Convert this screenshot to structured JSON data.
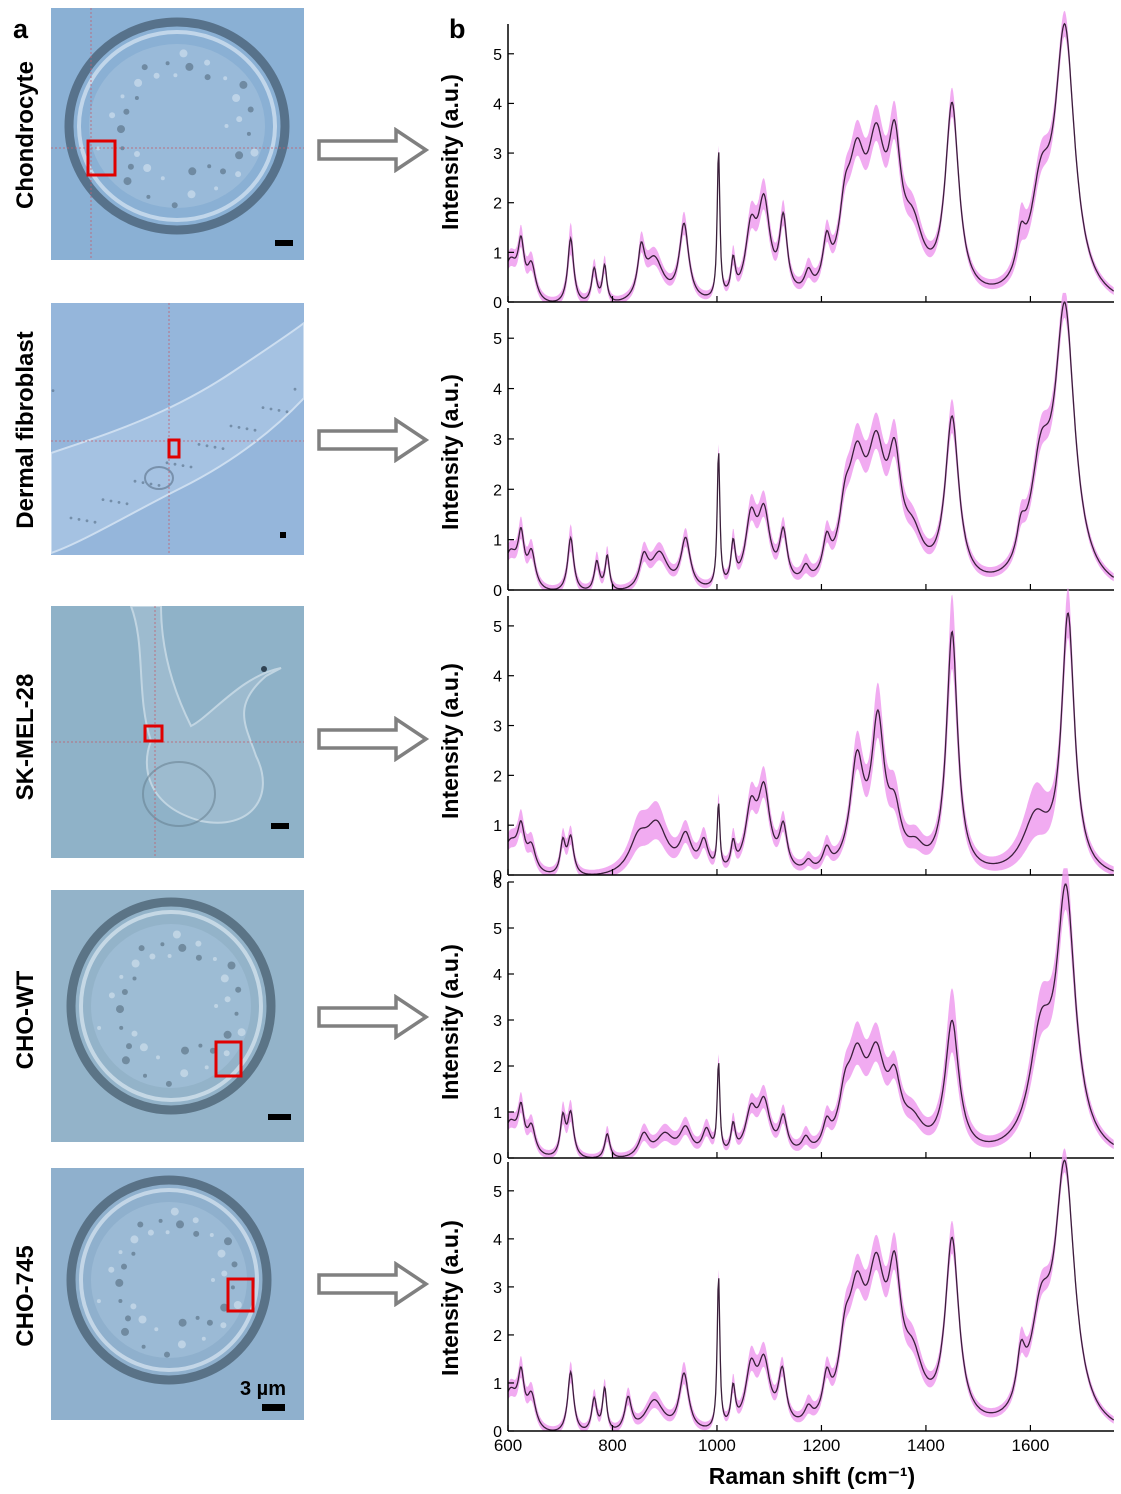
{
  "panel_labels": {
    "a": "a",
    "b": "b"
  },
  "cells": [
    {
      "name": "Chondrocyte",
      "scale_label": ""
    },
    {
      "name": "Dermal fibroblast",
      "scale_label": ""
    },
    {
      "name": "SK-MEL-28",
      "scale_label": ""
    },
    {
      "name": "CHO-WT",
      "scale_label": ""
    },
    {
      "name": "CHO-745",
      "scale_label": "3 µm"
    }
  ],
  "colors": {
    "mean_line": "#3a1f3a",
    "sd_band": "#ee9cee",
    "roi_box": "#e00000",
    "arrow": "#808080",
    "micro_background": "#8fb0cf"
  },
  "chart_data": [
    {
      "type": "line",
      "title": "",
      "xlabel": "",
      "ylabel": "Intensity (a.u.)",
      "xlim": [
        600,
        1760
      ],
      "ylim": [
        0,
        5.6
      ],
      "yticks": [
        0,
        1,
        2,
        3,
        4,
        5
      ],
      "peaks": [
        [
          604,
          0.9,
          18,
          0.1
        ],
        [
          625,
          0.95,
          7,
          0.1
        ],
        [
          645,
          0.7,
          10,
          0.1
        ],
        [
          720,
          1.35,
          7,
          0.25
        ],
        [
          765,
          0.7,
          6,
          0.1
        ],
        [
          785,
          0.75,
          5,
          0.1
        ],
        [
          855,
          0.9,
          8,
          0.1
        ],
        [
          880,
          0.9,
          22,
          0.1
        ],
        [
          937,
          1.55,
          11,
          0.15
        ],
        [
          1003,
          3.0,
          3,
          0.05
        ],
        [
          1031,
          0.7,
          5,
          0.1
        ],
        [
          1065,
          1.3,
          13,
          0.15
        ],
        [
          1090,
          1.85,
          14,
          0.2
        ],
        [
          1127,
          1.5,
          9,
          0.15
        ],
        [
          1175,
          0.4,
          9,
          0.1
        ],
        [
          1210,
          0.9,
          9,
          0.1
        ],
        [
          1245,
          1.2,
          14,
          0.1
        ],
        [
          1268,
          2.25,
          20,
          0.2
        ],
        [
          1305,
          2.6,
          21,
          0.2
        ],
        [
          1340,
          2.45,
          15,
          0.2
        ],
        [
          1375,
          1.15,
          24,
          0.15
        ],
        [
          1450,
          3.85,
          16,
          0.2
        ],
        [
          1582,
          0.75,
          10,
          0.25
        ],
        [
          1620,
          1.9,
          24,
          0.2
        ],
        [
          1666,
          5.3,
          23,
          0.15
        ]
      ]
    },
    {
      "type": "line",
      "title": "",
      "xlabel": "",
      "ylabel": "Intensity (a.u.)",
      "xlim": [
        600,
        1760
      ],
      "ylim": [
        0,
        5.6
      ],
      "yticks": [
        0,
        1,
        2,
        3,
        4,
        5
      ],
      "peaks": [
        [
          604,
          0.8,
          18,
          0.1
        ],
        [
          625,
          0.9,
          7,
          0.1
        ],
        [
          645,
          0.7,
          9,
          0.1
        ],
        [
          720,
          1.1,
          7,
          0.2
        ],
        [
          770,
          0.6,
          6,
          0.1
        ],
        [
          790,
          0.7,
          5,
          0.1
        ],
        [
          860,
          0.6,
          10,
          0.1
        ],
        [
          890,
          0.75,
          20,
          0.1
        ],
        [
          940,
          1.0,
          11,
          0.1
        ],
        [
          1003,
          2.7,
          3,
          0.1
        ],
        [
          1031,
          0.8,
          5,
          0.1
        ],
        [
          1065,
          1.3,
          13,
          0.15
        ],
        [
          1090,
          1.4,
          14,
          0.15
        ],
        [
          1127,
          1.0,
          9,
          0.1
        ],
        [
          1170,
          0.3,
          9,
          0.1
        ],
        [
          1210,
          0.7,
          9,
          0.1
        ],
        [
          1245,
          1.0,
          14,
          0.1
        ],
        [
          1268,
          2.05,
          20,
          0.2
        ],
        [
          1305,
          2.3,
          21,
          0.2
        ],
        [
          1340,
          2.0,
          15,
          0.2
        ],
        [
          1375,
          0.8,
          24,
          0.1
        ],
        [
          1450,
          3.3,
          16,
          0.25
        ],
        [
          1582,
          0.6,
          10,
          0.1
        ],
        [
          1620,
          2.1,
          24,
          0.2
        ],
        [
          1666,
          5.35,
          23,
          0.2
        ]
      ]
    },
    {
      "type": "line",
      "title": "",
      "xlabel": "",
      "ylabel": "Intensity (a.u.)",
      "xlim": [
        600,
        1760
      ],
      "ylim": [
        0,
        5.6
      ],
      "yticks": [
        0,
        1,
        2,
        3,
        4,
        5
      ],
      "peaks": [
        [
          604,
          0.7,
          20,
          0.1
        ],
        [
          625,
          0.75,
          8,
          0.1
        ],
        [
          645,
          0.5,
          10,
          0.1
        ],
        [
          705,
          0.65,
          6,
          0.1
        ],
        [
          720,
          0.75,
          7,
          0.1
        ],
        [
          850,
          0.65,
          22,
          0.2
        ],
        [
          885,
          0.95,
          25,
          0.25
        ],
        [
          940,
          0.7,
          14,
          0.1
        ],
        [
          975,
          0.6,
          10,
          0.1
        ],
        [
          1003,
          1.3,
          3,
          0.1
        ],
        [
          1031,
          0.5,
          5,
          0.1
        ],
        [
          1065,
          1.2,
          13,
          0.15
        ],
        [
          1090,
          1.6,
          14,
          0.2
        ],
        [
          1127,
          0.85,
          9,
          0.1
        ],
        [
          1175,
          0.2,
          9,
          0.05
        ],
        [
          1210,
          0.4,
          9,
          0.1
        ],
        [
          1268,
          2.15,
          16,
          0.25
        ],
        [
          1308,
          2.85,
          15,
          0.4
        ],
        [
          1340,
          1.0,
          15,
          0.2
        ],
        [
          1380,
          0.4,
          20,
          0.1
        ],
        [
          1450,
          4.85,
          13,
          0.65
        ],
        [
          1610,
          1.1,
          30,
          0.45
        ],
        [
          1672,
          5.15,
          15,
          0.35
        ]
      ]
    },
    {
      "type": "line",
      "title": "",
      "xlabel": "",
      "ylabel": "Intensity (a.u.)",
      "xlim": [
        600,
        1760
      ],
      "ylim": [
        0,
        6
      ],
      "yticks": [
        0,
        1,
        2,
        3,
        4,
        5,
        6
      ],
      "peaks": [
        [
          604,
          0.8,
          18,
          0.1
        ],
        [
          625,
          0.85,
          7,
          0.1
        ],
        [
          645,
          0.6,
          9,
          0.1
        ],
        [
          705,
          0.85,
          6,
          0.15
        ],
        [
          720,
          0.95,
          7,
          0.15
        ],
        [
          790,
          0.55,
          6,
          0.1
        ],
        [
          860,
          0.5,
          12,
          0.1
        ],
        [
          900,
          0.5,
          20,
          0.1
        ],
        [
          940,
          0.6,
          14,
          0.1
        ],
        [
          980,
          0.55,
          10,
          0.1
        ],
        [
          1003,
          1.95,
          3,
          0.1
        ],
        [
          1031,
          0.6,
          5,
          0.1
        ],
        [
          1065,
          0.9,
          13,
          0.1
        ],
        [
          1090,
          1.1,
          14,
          0.15
        ],
        [
          1127,
          0.75,
          9,
          0.1
        ],
        [
          1170,
          0.3,
          9,
          0.1
        ],
        [
          1210,
          0.5,
          9,
          0.1
        ],
        [
          1245,
          0.9,
          14,
          0.1
        ],
        [
          1268,
          1.75,
          20,
          0.3
        ],
        [
          1305,
          1.85,
          21,
          0.25
        ],
        [
          1340,
          1.2,
          15,
          0.1
        ],
        [
          1375,
          0.55,
          24,
          0.1
        ],
        [
          1450,
          2.85,
          16,
          0.6
        ],
        [
          1620,
          2.3,
          26,
          0.4
        ],
        [
          1668,
          5.5,
          22,
          0.4
        ]
      ]
    },
    {
      "type": "line",
      "title": "",
      "xlabel": "Raman shift (cm⁻¹)",
      "ylabel": "Intensity (a.u.)",
      "xlim": [
        600,
        1760
      ],
      "ylim": [
        0,
        5.6
      ],
      "yticks": [
        0,
        1,
        2,
        3,
        4,
        5
      ],
      "xticks": [
        600,
        800,
        1000,
        1200,
        1400,
        1600
      ],
      "peaks": [
        [
          604,
          0.9,
          18,
          0.1
        ],
        [
          625,
          0.95,
          7,
          0.1
        ],
        [
          645,
          0.7,
          10,
          0.1
        ],
        [
          720,
          1.3,
          7,
          0.15
        ],
        [
          765,
          0.7,
          6,
          0.1
        ],
        [
          785,
          0.9,
          5,
          0.1
        ],
        [
          830,
          0.7,
          8,
          0.1
        ],
        [
          880,
          0.7,
          22,
          0.1
        ],
        [
          937,
          1.2,
          11,
          0.15
        ],
        [
          1003,
          3.2,
          3,
          0.1
        ],
        [
          1031,
          0.8,
          5,
          0.1
        ],
        [
          1065,
          1.2,
          13,
          0.15
        ],
        [
          1090,
          1.3,
          14,
          0.15
        ],
        [
          1125,
          1.1,
          9,
          0.1
        ],
        [
          1175,
          0.3,
          9,
          0.1
        ],
        [
          1210,
          0.8,
          9,
          0.1
        ],
        [
          1245,
          1.2,
          14,
          0.1
        ],
        [
          1268,
          2.25,
          20,
          0.2
        ],
        [
          1305,
          2.7,
          21,
          0.2
        ],
        [
          1340,
          2.5,
          15,
          0.2
        ],
        [
          1375,
          1.15,
          24,
          0.15
        ],
        [
          1450,
          3.85,
          16,
          0.25
        ],
        [
          1582,
          1.0,
          10,
          0.15
        ],
        [
          1620,
          2.0,
          24,
          0.15
        ],
        [
          1666,
          5.3,
          23,
          0.15
        ]
      ]
    }
  ]
}
